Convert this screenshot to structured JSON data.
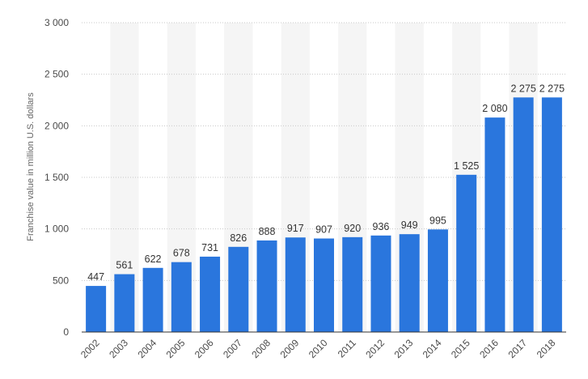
{
  "chart_data": {
    "type": "bar",
    "title": "",
    "xlabel": "",
    "ylabel": "Franchise value in million U.S. dollars",
    "categories": [
      "2002",
      "2003",
      "2004",
      "2005",
      "2006",
      "2007",
      "2008",
      "2009",
      "2010",
      "2011",
      "2012",
      "2013",
      "2014",
      "2015",
      "2016",
      "2017",
      "2018"
    ],
    "values": [
      447,
      561,
      622,
      678,
      731,
      826,
      888,
      917,
      907,
      920,
      936,
      949,
      995,
      1525,
      2080,
      2275,
      2275
    ],
    "data_labels": [
      "447",
      "561",
      "622",
      "678",
      "731",
      "826",
      "888",
      "917",
      "907",
      "920",
      "936",
      "949",
      "995",
      "1 525",
      "2 080",
      "2 275",
      "2 275"
    ],
    "ylim": [
      0,
      3000
    ],
    "yticks": [
      0,
      500,
      1000,
      1500,
      2000,
      2500,
      3000
    ],
    "ytick_labels": [
      "0",
      "500",
      "1 000",
      "1 500",
      "2 000",
      "2 500",
      "3 000"
    ],
    "grid": true,
    "legend": "none",
    "colors": {
      "bar": "#2A76DD",
      "band": "#F5F5F5",
      "grid": "#C8C8C8",
      "axis": "#333333"
    }
  }
}
